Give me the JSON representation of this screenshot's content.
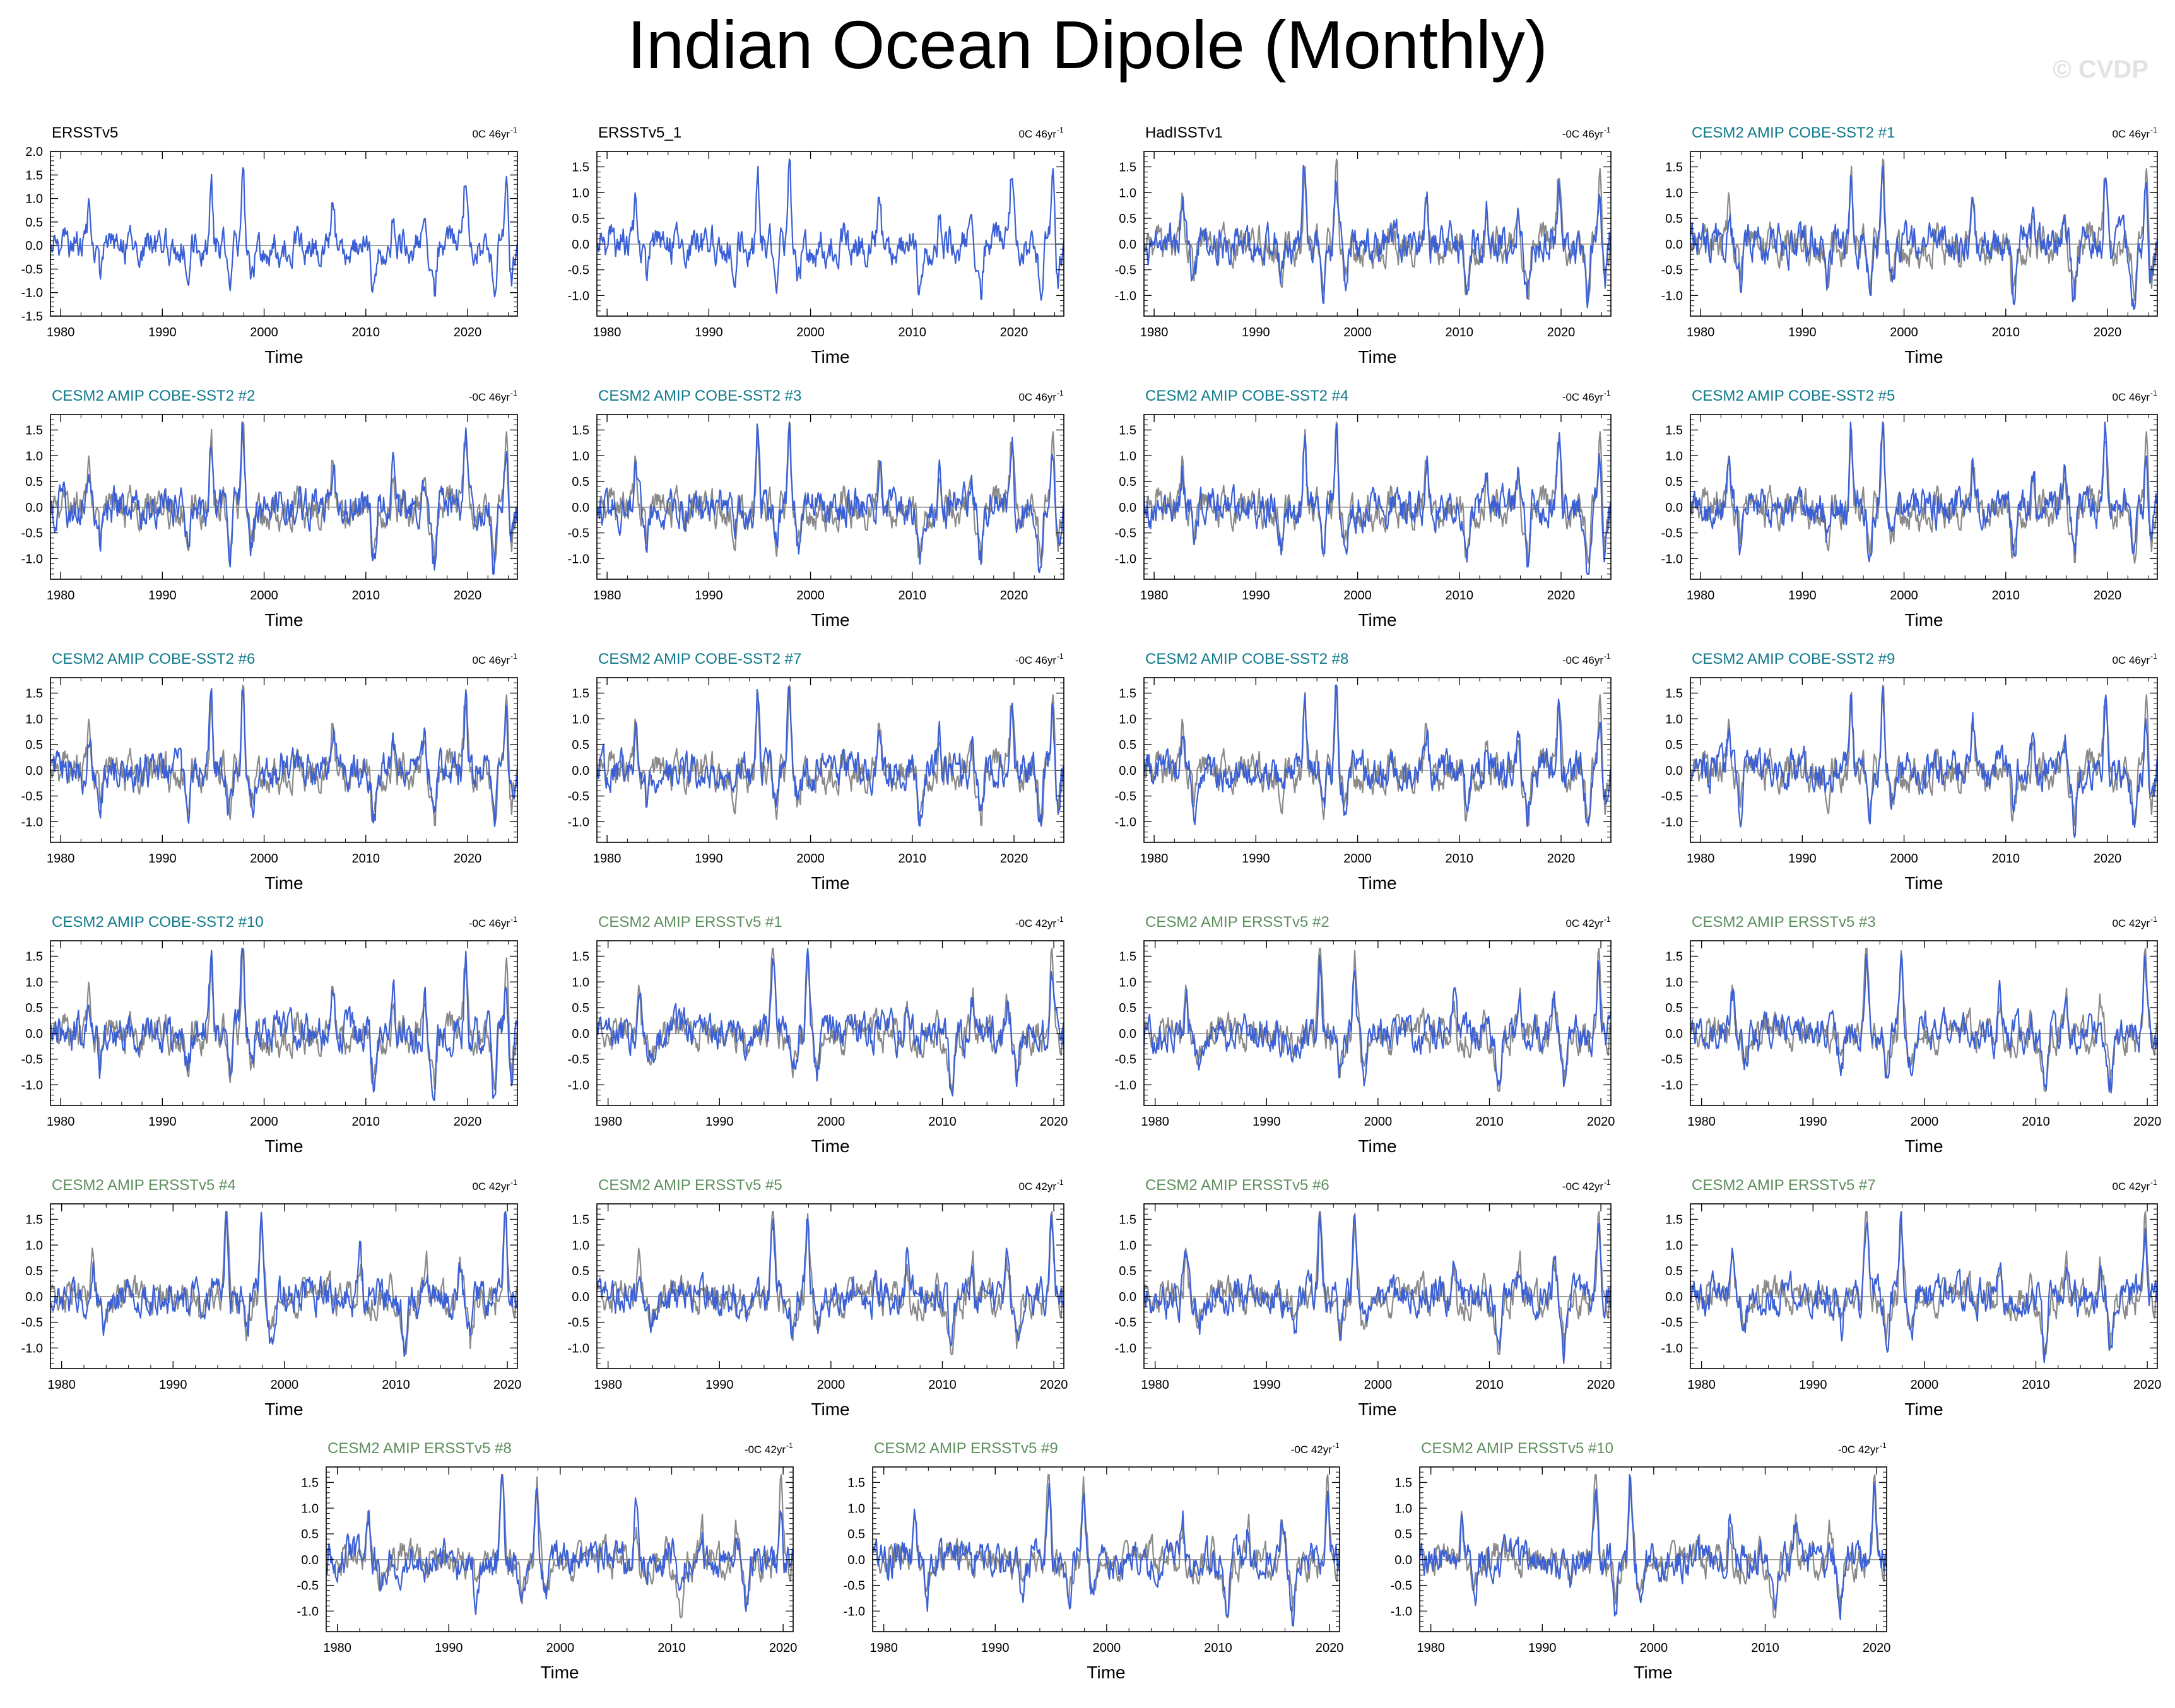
{
  "title": "Indian Ocean Dipole (Monthly)",
  "watermark": "© CVDP",
  "colors": {
    "model_line": "#3b60d6",
    "observation_line": "#8a8a8a",
    "zero_line": "#8a8a8a",
    "obs_title": "#000000",
    "cobe_title": "#117a8b",
    "ersst_title": "#5e8f5e"
  },
  "chart_data": [
    {
      "type": "line",
      "title": "ERSSTv5",
      "title_color": "obs",
      "trend": "0C 46yr",
      "xlabel": "Time",
      "xlim": [
        1979,
        2024.9
      ],
      "xticks": [
        1980,
        1990,
        2000,
        2010,
        2020
      ],
      "ylim": [
        -1.5,
        2.0
      ],
      "yticks": [
        -1.5,
        -1.0,
        -0.5,
        0.0,
        0.5,
        1.0,
        1.5,
        2.0
      ],
      "ytick_labels": [
        "-1.5",
        "-1.0",
        "-0.5",
        "0.0",
        "0.5",
        "1.0",
        "1.5",
        "2.0"
      ],
      "series": [
        {
          "role": "model",
          "seed": 1
        }
      ]
    },
    {
      "type": "line",
      "title": "ERSSTv5_1",
      "title_color": "obs",
      "trend": "0C 46yr",
      "xlabel": "Time",
      "xlim": [
        1979,
        2024.9
      ],
      "xticks": [
        1980,
        1990,
        2000,
        2010,
        2020
      ],
      "ylim": [
        -1.4,
        1.8
      ],
      "yticks": [
        -1.0,
        -0.5,
        0.0,
        0.5,
        1.0,
        1.5
      ],
      "ytick_labels": [
        "-1.0",
        "-0.5",
        "0.0",
        "0.5",
        "1.0",
        "1.5"
      ],
      "series": [
        {
          "role": "model",
          "seed": 1
        }
      ]
    },
    {
      "type": "line",
      "title": "HadISSTv1",
      "title_color": "obs",
      "trend": "-0C 46yr",
      "xlabel": "Time",
      "xlim": [
        1979,
        2024.9
      ],
      "xticks": [
        1980,
        1990,
        2000,
        2010,
        2020
      ],
      "ylim": [
        -1.4,
        1.8
      ],
      "yticks": [
        -1.0,
        -0.5,
        0.0,
        0.5,
        1.0,
        1.5
      ],
      "ytick_labels": [
        "-1.0",
        "-0.5",
        "0.0",
        "0.5",
        "1.0",
        "1.5"
      ],
      "series": [
        {
          "role": "observation",
          "seed": 1
        },
        {
          "role": "model",
          "seed": 3
        }
      ]
    },
    {
      "type": "line",
      "title": "CESM2 AMIP COBE-SST2 #1",
      "title_color": "cobe",
      "trend": "0C 46yr",
      "xlabel": "Time",
      "xlim": [
        1979,
        2024.9
      ],
      "xticks": [
        1980,
        1990,
        2000,
        2010,
        2020
      ],
      "ylim": [
        -1.4,
        1.8
      ],
      "yticks": [
        -1.0,
        -0.5,
        0.0,
        0.5,
        1.0,
        1.5
      ],
      "ytick_labels": [
        "-1.0",
        "-0.5",
        "0.0",
        "0.5",
        "1.0",
        "1.5"
      ],
      "series": [
        {
          "role": "observation",
          "seed": 1
        },
        {
          "role": "model",
          "seed": 4
        }
      ]
    },
    {
      "type": "line",
      "title": "CESM2 AMIP COBE-SST2 #2",
      "title_color": "cobe",
      "trend": "-0C 46yr",
      "xlabel": "Time",
      "xlim": [
        1979,
        2024.9
      ],
      "xticks": [
        1980,
        1990,
        2000,
        2010,
        2020
      ],
      "ylim": [
        -1.4,
        1.8
      ],
      "yticks": [
        -1.0,
        -0.5,
        0.0,
        0.5,
        1.0,
        1.5
      ],
      "ytick_labels": [
        "-1.0",
        "-0.5",
        "0.0",
        "0.5",
        "1.0",
        "1.5"
      ],
      "series": [
        {
          "role": "observation",
          "seed": 1
        },
        {
          "role": "model",
          "seed": 5
        }
      ]
    },
    {
      "type": "line",
      "title": "CESM2 AMIP COBE-SST2 #3",
      "title_color": "cobe",
      "trend": "0C 46yr",
      "xlabel": "Time",
      "xlim": [
        1979,
        2024.9
      ],
      "xticks": [
        1980,
        1990,
        2000,
        2010,
        2020
      ],
      "ylim": [
        -1.4,
        1.8
      ],
      "yticks": [
        -1.0,
        -0.5,
        0.0,
        0.5,
        1.0,
        1.5
      ],
      "ytick_labels": [
        "-1.0",
        "-0.5",
        "0.0",
        "0.5",
        "1.0",
        "1.5"
      ],
      "series": [
        {
          "role": "observation",
          "seed": 1
        },
        {
          "role": "model",
          "seed": 6
        }
      ]
    },
    {
      "type": "line",
      "title": "CESM2 AMIP COBE-SST2 #4",
      "title_color": "cobe",
      "trend": "-0C 46yr",
      "xlabel": "Time",
      "xlim": [
        1979,
        2024.9
      ],
      "xticks": [
        1980,
        1990,
        2000,
        2010,
        2020
      ],
      "ylim": [
        -1.4,
        1.8
      ],
      "yticks": [
        -1.0,
        -0.5,
        0.0,
        0.5,
        1.0,
        1.5
      ],
      "ytick_labels": [
        "-1.0",
        "-0.5",
        "0.0",
        "0.5",
        "1.0",
        "1.5"
      ],
      "series": [
        {
          "role": "observation",
          "seed": 1
        },
        {
          "role": "model",
          "seed": 7
        }
      ]
    },
    {
      "type": "line",
      "title": "CESM2 AMIP COBE-SST2 #5",
      "title_color": "cobe",
      "trend": "0C 46yr",
      "xlabel": "Time",
      "xlim": [
        1979,
        2024.9
      ],
      "xticks": [
        1980,
        1990,
        2000,
        2010,
        2020
      ],
      "ylim": [
        -1.4,
        1.8
      ],
      "yticks": [
        -1.0,
        -0.5,
        0.0,
        0.5,
        1.0,
        1.5
      ],
      "ytick_labels": [
        "-1.0",
        "-0.5",
        "0.0",
        "0.5",
        "1.0",
        "1.5"
      ],
      "series": [
        {
          "role": "observation",
          "seed": 1
        },
        {
          "role": "model",
          "seed": 8
        }
      ]
    },
    {
      "type": "line",
      "title": "CESM2 AMIP COBE-SST2 #6",
      "title_color": "cobe",
      "trend": "0C 46yr",
      "xlabel": "Time",
      "xlim": [
        1979,
        2024.9
      ],
      "xticks": [
        1980,
        1990,
        2000,
        2010,
        2020
      ],
      "ylim": [
        -1.4,
        1.8
      ],
      "yticks": [
        -1.0,
        -0.5,
        0.0,
        0.5,
        1.0,
        1.5
      ],
      "ytick_labels": [
        "-1.0",
        "-0.5",
        "0.0",
        "0.5",
        "1.0",
        "1.5"
      ],
      "series": [
        {
          "role": "observation",
          "seed": 1
        },
        {
          "role": "model",
          "seed": 9
        }
      ]
    },
    {
      "type": "line",
      "title": "CESM2 AMIP COBE-SST2 #7",
      "title_color": "cobe",
      "trend": "-0C 46yr",
      "xlabel": "Time",
      "xlim": [
        1979,
        2024.9
      ],
      "xticks": [
        1980,
        1990,
        2000,
        2010,
        2020
      ],
      "ylim": [
        -1.4,
        1.8
      ],
      "yticks": [
        -1.0,
        -0.5,
        0.0,
        0.5,
        1.0,
        1.5
      ],
      "ytick_labels": [
        "-1.0",
        "-0.5",
        "0.0",
        "0.5",
        "1.0",
        "1.5"
      ],
      "series": [
        {
          "role": "observation",
          "seed": 1
        },
        {
          "role": "model",
          "seed": 10
        }
      ]
    },
    {
      "type": "line",
      "title": "CESM2 AMIP COBE-SST2 #8",
      "title_color": "cobe",
      "trend": "-0C 46yr",
      "xlabel": "Time",
      "xlim": [
        1979,
        2024.9
      ],
      "xticks": [
        1980,
        1990,
        2000,
        2010,
        2020
      ],
      "ylim": [
        -1.4,
        1.8
      ],
      "yticks": [
        -1.0,
        -0.5,
        0.0,
        0.5,
        1.0,
        1.5
      ],
      "ytick_labels": [
        "-1.0",
        "-0.5",
        "0.0",
        "0.5",
        "1.0",
        "1.5"
      ],
      "series": [
        {
          "role": "observation",
          "seed": 1
        },
        {
          "role": "model",
          "seed": 11
        }
      ]
    },
    {
      "type": "line",
      "title": "CESM2 AMIP COBE-SST2 #9",
      "title_color": "cobe",
      "trend": "0C 46yr",
      "xlabel": "Time",
      "xlim": [
        1979,
        2024.9
      ],
      "xticks": [
        1980,
        1990,
        2000,
        2010,
        2020
      ],
      "ylim": [
        -1.4,
        1.8
      ],
      "yticks": [
        -1.0,
        -0.5,
        0.0,
        0.5,
        1.0,
        1.5
      ],
      "ytick_labels": [
        "-1.0",
        "-0.5",
        "0.0",
        "0.5",
        "1.0",
        "1.5"
      ],
      "series": [
        {
          "role": "observation",
          "seed": 1
        },
        {
          "role": "model",
          "seed": 12
        }
      ]
    },
    {
      "type": "line",
      "title": "CESM2 AMIP COBE-SST2 #10",
      "title_color": "cobe",
      "trend": "-0C 46yr",
      "xlabel": "Time",
      "xlim": [
        1979,
        2024.9
      ],
      "xticks": [
        1980,
        1990,
        2000,
        2010,
        2020
      ],
      "ylim": [
        -1.4,
        1.8
      ],
      "yticks": [
        -1.0,
        -0.5,
        0.0,
        0.5,
        1.0,
        1.5
      ],
      "ytick_labels": [
        "-1.0",
        "-0.5",
        "0.0",
        "0.5",
        "1.0",
        "1.5"
      ],
      "series": [
        {
          "role": "observation",
          "seed": 1
        },
        {
          "role": "model",
          "seed": 13
        }
      ]
    },
    {
      "type": "line",
      "title": "CESM2 AMIP ERSSTv5 #1",
      "title_color": "ersst",
      "trend": "-0C 42yr",
      "xlabel": "Time",
      "xlim": [
        1979,
        2020.9
      ],
      "xticks": [
        1980,
        1990,
        2000,
        2010,
        2020
      ],
      "ylim": [
        -1.4,
        1.8
      ],
      "yticks": [
        -1.0,
        -0.5,
        0.0,
        0.5,
        1.0,
        1.5
      ],
      "ytick_labels": [
        "-1.0",
        "-0.5",
        "0.0",
        "0.5",
        "1.0",
        "1.5"
      ],
      "series": [
        {
          "role": "observation",
          "seed": 2
        },
        {
          "role": "model",
          "seed": 14
        }
      ]
    },
    {
      "type": "line",
      "title": "CESM2 AMIP ERSSTv5 #2",
      "title_color": "ersst",
      "trend": "0C 42yr",
      "xlabel": "Time",
      "xlim": [
        1979,
        2020.9
      ],
      "xticks": [
        1980,
        1990,
        2000,
        2010,
        2020
      ],
      "ylim": [
        -1.4,
        1.8
      ],
      "yticks": [
        -1.0,
        -0.5,
        0.0,
        0.5,
        1.0,
        1.5
      ],
      "ytick_labels": [
        "-1.0",
        "-0.5",
        "0.0",
        "0.5",
        "1.0",
        "1.5"
      ],
      "series": [
        {
          "role": "observation",
          "seed": 2
        },
        {
          "role": "model",
          "seed": 15
        }
      ]
    },
    {
      "type": "line",
      "title": "CESM2 AMIP ERSSTv5 #3",
      "title_color": "ersst",
      "trend": "0C 42yr",
      "xlabel": "Time",
      "xlim": [
        1979,
        2020.9
      ],
      "xticks": [
        1980,
        1990,
        2000,
        2010,
        2020
      ],
      "ylim": [
        -1.4,
        1.8
      ],
      "yticks": [
        -1.0,
        -0.5,
        0.0,
        0.5,
        1.0,
        1.5
      ],
      "ytick_labels": [
        "-1.0",
        "-0.5",
        "0.0",
        "0.5",
        "1.0",
        "1.5"
      ],
      "series": [
        {
          "role": "observation",
          "seed": 2
        },
        {
          "role": "model",
          "seed": 16
        }
      ]
    },
    {
      "type": "line",
      "title": "CESM2 AMIP ERSSTv5 #4",
      "title_color": "ersst",
      "trend": "0C 42yr",
      "xlabel": "Time",
      "xlim": [
        1979,
        2020.9
      ],
      "xticks": [
        1980,
        1990,
        2000,
        2010,
        2020
      ],
      "ylim": [
        -1.4,
        1.8
      ],
      "yticks": [
        -1.0,
        -0.5,
        0.0,
        0.5,
        1.0,
        1.5
      ],
      "ytick_labels": [
        "-1.0",
        "-0.5",
        "0.0",
        "0.5",
        "1.0",
        "1.5"
      ],
      "series": [
        {
          "role": "observation",
          "seed": 2
        },
        {
          "role": "model",
          "seed": 17
        }
      ]
    },
    {
      "type": "line",
      "title": "CESM2 AMIP ERSSTv5 #5",
      "title_color": "ersst",
      "trend": "0C 42yr",
      "xlabel": "Time",
      "xlim": [
        1979,
        2020.9
      ],
      "xticks": [
        1980,
        1990,
        2000,
        2010,
        2020
      ],
      "ylim": [
        -1.4,
        1.8
      ],
      "yticks": [
        -1.0,
        -0.5,
        0.0,
        0.5,
        1.0,
        1.5
      ],
      "ytick_labels": [
        "-1.0",
        "-0.5",
        "0.0",
        "0.5",
        "1.0",
        "1.5"
      ],
      "series": [
        {
          "role": "observation",
          "seed": 2
        },
        {
          "role": "model",
          "seed": 18
        }
      ]
    },
    {
      "type": "line",
      "title": "CESM2 AMIP ERSSTv5 #6",
      "title_color": "ersst",
      "trend": "-0C 42yr",
      "xlabel": "Time",
      "xlim": [
        1979,
        2020.9
      ],
      "xticks": [
        1980,
        1990,
        2000,
        2010,
        2020
      ],
      "ylim": [
        -1.4,
        1.8
      ],
      "yticks": [
        -1.0,
        -0.5,
        0.0,
        0.5,
        1.0,
        1.5
      ],
      "ytick_labels": [
        "-1.0",
        "-0.5",
        "0.0",
        "0.5",
        "1.0",
        "1.5"
      ],
      "series": [
        {
          "role": "observation",
          "seed": 2
        },
        {
          "role": "model",
          "seed": 19
        }
      ]
    },
    {
      "type": "line",
      "title": "CESM2 AMIP ERSSTv5 #7",
      "title_color": "ersst",
      "trend": "0C 42yr",
      "xlabel": "Time",
      "xlim": [
        1979,
        2020.9
      ],
      "xticks": [
        1980,
        1990,
        2000,
        2010,
        2020
      ],
      "ylim": [
        -1.4,
        1.8
      ],
      "yticks": [
        -1.0,
        -0.5,
        0.0,
        0.5,
        1.0,
        1.5
      ],
      "ytick_labels": [
        "-1.0",
        "-0.5",
        "0.0",
        "0.5",
        "1.0",
        "1.5"
      ],
      "series": [
        {
          "role": "observation",
          "seed": 2
        },
        {
          "role": "model",
          "seed": 20
        }
      ]
    },
    {
      "type": "line",
      "title": "CESM2 AMIP ERSSTv5 #8",
      "title_color": "ersst",
      "trend": "-0C 42yr",
      "xlabel": "Time",
      "xlim": [
        1979,
        2020.9
      ],
      "xticks": [
        1980,
        1990,
        2000,
        2010,
        2020
      ],
      "ylim": [
        -1.4,
        1.8
      ],
      "yticks": [
        -1.0,
        -0.5,
        0.0,
        0.5,
        1.0,
        1.5
      ],
      "ytick_labels": [
        "-1.0",
        "-0.5",
        "0.0",
        "0.5",
        "1.0",
        "1.5"
      ],
      "series": [
        {
          "role": "observation",
          "seed": 2
        },
        {
          "role": "model",
          "seed": 21
        }
      ]
    },
    {
      "type": "line",
      "title": "CESM2 AMIP ERSSTv5 #9",
      "title_color": "ersst",
      "trend": "-0C 42yr",
      "xlabel": "Time",
      "xlim": [
        1979,
        2020.9
      ],
      "xticks": [
        1980,
        1990,
        2000,
        2010,
        2020
      ],
      "ylim": [
        -1.4,
        1.8
      ],
      "yticks": [
        -1.0,
        -0.5,
        0.0,
        0.5,
        1.0,
        1.5
      ],
      "ytick_labels": [
        "-1.0",
        "-0.5",
        "0.0",
        "0.5",
        "1.0",
        "1.5"
      ],
      "series": [
        {
          "role": "observation",
          "seed": 2
        },
        {
          "role": "model",
          "seed": 22
        }
      ]
    },
    {
      "type": "line",
      "title": "CESM2 AMIP ERSSTv5 #10",
      "title_color": "ersst",
      "trend": "-0C 42yr",
      "xlabel": "Time",
      "xlim": [
        1979,
        2020.9
      ],
      "xticks": [
        1980,
        1990,
        2000,
        2010,
        2020
      ],
      "ylim": [
        -1.4,
        1.8
      ],
      "yticks": [
        -1.0,
        -0.5,
        0.0,
        0.5,
        1.0,
        1.5
      ],
      "ytick_labels": [
        "-1.0",
        "-0.5",
        "0.0",
        "0.5",
        "1.0",
        "1.5"
      ],
      "series": [
        {
          "role": "observation",
          "seed": 2
        },
        {
          "role": "model",
          "seed": 23
        }
      ]
    }
  ]
}
